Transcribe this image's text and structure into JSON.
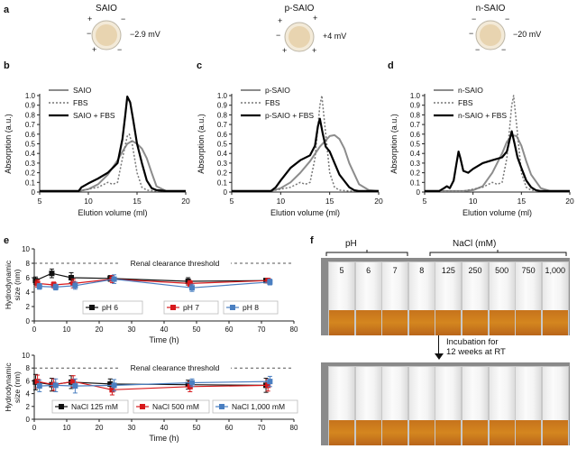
{
  "panels": {
    "a": {
      "label": "a",
      "particles": [
        {
          "name": "SAIO",
          "zeta": "−2.9 mV"
        },
        {
          "name": "p-SAIO",
          "zeta": "+4 mV"
        },
        {
          "name": "n-SAIO",
          "zeta": "−20 mV"
        }
      ]
    },
    "b": {
      "label": "b"
    },
    "c": {
      "label": "c"
    },
    "d": {
      "label": "d"
    },
    "e": {
      "label": "e",
      "threshold_label": "Renal clearance threshold"
    },
    "f": {
      "label": "f",
      "ph_header": "pH",
      "nacl_header": "NaCl (mM)",
      "tubes": [
        "5",
        "6",
        "7",
        "8",
        "125",
        "250",
        "500",
        "750",
        "1,000"
      ],
      "incubation_text": [
        "Incubation for",
        "12 weeks at RT"
      ]
    }
  },
  "chart_data": [
    {
      "id": "b",
      "type": "line",
      "xlabel": "Elution volume (ml)",
      "ylabel": "Absorption (a.u.)",
      "xlim": [
        5,
        20
      ],
      "ylim": [
        0,
        1.0
      ],
      "xticks": [
        "5",
        "10",
        "15",
        "20"
      ],
      "yticks": [
        "0",
        "0.1",
        "0.2",
        "0.3",
        "0.4",
        "0.5",
        "0.6",
        "0.7",
        "0.8",
        "0.9",
        "1.0"
      ],
      "series": [
        {
          "name": "SAIO",
          "style": "gray",
          "x": [
            5,
            9,
            10,
            11,
            12,
            13,
            13.5,
            14,
            14.5,
            15,
            15.5,
            16,
            16.5,
            17,
            18,
            20
          ],
          "y": [
            0.01,
            0.01,
            0.03,
            0.08,
            0.18,
            0.33,
            0.42,
            0.5,
            0.53,
            0.5,
            0.45,
            0.35,
            0.2,
            0.06,
            0.01,
            0.01
          ]
        },
        {
          "name": "FBS",
          "style": "dotted",
          "x": [
            5,
            9,
            10,
            11,
            12,
            12.5,
            13,
            13.5,
            14,
            14.2,
            14.5,
            15,
            15.5,
            16,
            17,
            20
          ],
          "y": [
            0.01,
            0.01,
            0.03,
            0.05,
            0.1,
            0.08,
            0.1,
            0.35,
            0.58,
            0.6,
            0.5,
            0.2,
            0.05,
            0.02,
            0.01,
            0.01
          ]
        },
        {
          "name": "SAIO + FBS",
          "style": "black",
          "x": [
            5,
            9,
            9.3,
            10,
            11,
            12,
            13,
            13.5,
            13.8,
            14,
            14.3,
            14.6,
            15,
            15.5,
            16,
            16.5,
            17,
            18,
            20
          ],
          "y": [
            0.01,
            0.01,
            0.05,
            0.09,
            0.14,
            0.2,
            0.3,
            0.55,
            0.8,
            0.99,
            0.93,
            0.75,
            0.5,
            0.3,
            0.12,
            0.04,
            0.02,
            0.01,
            0.01
          ]
        }
      ]
    },
    {
      "id": "c",
      "type": "line",
      "xlabel": "Elution volume (ml)",
      "ylabel": "Absorption (a.u.)",
      "xlim": [
        5,
        20
      ],
      "ylim": [
        0,
        1.0
      ],
      "xticks": [
        "5",
        "10",
        "15",
        "20"
      ],
      "yticks": [
        "0",
        "0.1",
        "0.2",
        "0.3",
        "0.4",
        "0.5",
        "0.6",
        "0.7",
        "0.8",
        "0.9",
        "1.0"
      ],
      "series": [
        {
          "name": "p-SAIO",
          "style": "gray",
          "x": [
            5,
            9,
            10,
            11,
            12,
            13,
            14,
            15,
            15.5,
            16,
            16.5,
            17,
            18,
            19,
            20
          ],
          "y": [
            0.01,
            0.01,
            0.04,
            0.1,
            0.2,
            0.32,
            0.47,
            0.58,
            0.59,
            0.55,
            0.45,
            0.3,
            0.08,
            0.02,
            0.01
          ]
        },
        {
          "name": "FBS",
          "style": "dotted",
          "x": [
            5,
            9,
            10,
            11,
            12,
            12.5,
            13,
            13.5,
            14,
            14.2,
            14.5,
            15,
            15.5,
            16,
            17,
            20
          ],
          "y": [
            0.01,
            0.01,
            0.03,
            0.05,
            0.1,
            0.08,
            0.1,
            0.35,
            0.9,
            1.0,
            0.7,
            0.2,
            0.05,
            0.02,
            0.01,
            0.01
          ]
        },
        {
          "name": "p-SAIO + FBS",
          "style": "black",
          "x": [
            5,
            9,
            9.5,
            10,
            11,
            12,
            13,
            13.5,
            13.8,
            14,
            14.3,
            14.6,
            15,
            15.5,
            16,
            17,
            17.5,
            18,
            20
          ],
          "y": [
            0.01,
            0.01,
            0.05,
            0.12,
            0.25,
            0.33,
            0.38,
            0.48,
            0.68,
            0.76,
            0.6,
            0.47,
            0.42,
            0.3,
            0.18,
            0.05,
            0.02,
            0.01,
            0.01
          ]
        }
      ]
    },
    {
      "id": "d",
      "type": "line",
      "xlabel": "Elution volume (ml)",
      "ylabel": "Absorption (a.u.)",
      "xlim": [
        5,
        20
      ],
      "ylim": [
        0,
        1.0
      ],
      "xticks": [
        "5",
        "10",
        "15",
        "20"
      ],
      "yticks": [
        "0",
        "0.1",
        "0.2",
        "0.3",
        "0.4",
        "0.5",
        "0.6",
        "0.7",
        "0.8",
        "0.9",
        "1.0"
      ],
      "series": [
        {
          "name": "n-SAIO",
          "style": "gray",
          "x": [
            5,
            9,
            10,
            11,
            12,
            13,
            13.5,
            14,
            14.5,
            15,
            15.5,
            16,
            17,
            18,
            20
          ],
          "y": [
            0.01,
            0.01,
            0.02,
            0.06,
            0.2,
            0.4,
            0.52,
            0.59,
            0.58,
            0.48,
            0.32,
            0.18,
            0.04,
            0.01,
            0.01
          ]
        },
        {
          "name": "FBS",
          "style": "dotted",
          "x": [
            5,
            9,
            10,
            11,
            12,
            12.5,
            13,
            13.5,
            14,
            14.2,
            14.5,
            15,
            15.5,
            16,
            17,
            20
          ],
          "y": [
            0.01,
            0.01,
            0.03,
            0.05,
            0.1,
            0.08,
            0.1,
            0.35,
            0.9,
            1.0,
            0.7,
            0.2,
            0.05,
            0.02,
            0.01,
            0.01
          ]
        },
        {
          "name": "n-SAIO + FBS",
          "style": "black",
          "x": [
            5,
            6.5,
            7,
            7.3,
            7.6,
            8,
            8.3,
            8.5,
            8.7,
            9,
            9.5,
            10,
            11,
            12,
            13,
            13.5,
            13.8,
            14,
            14.3,
            14.6,
            15,
            15.5,
            16,
            16.5,
            17,
            18,
            20
          ],
          "y": [
            0.01,
            0.01,
            0.04,
            0.06,
            0.04,
            0.12,
            0.3,
            0.42,
            0.35,
            0.22,
            0.2,
            0.24,
            0.3,
            0.33,
            0.36,
            0.42,
            0.55,
            0.63,
            0.5,
            0.36,
            0.25,
            0.12,
            0.05,
            0.02,
            0.01,
            0.01,
            0.01
          ]
        }
      ]
    },
    {
      "id": "e1",
      "type": "line",
      "xlabel": "Time (h)",
      "ylabel": "Hydrodynamic size (nm)",
      "xlim": [
        0,
        80
      ],
      "ylim": [
        0,
        10
      ],
      "xticks": [
        "0",
        "10",
        "20",
        "30",
        "40",
        "50",
        "60",
        "70",
        "80"
      ],
      "yticks": [
        "0",
        "2",
        "4",
        "6",
        "8",
        "10"
      ],
      "threshold": 8,
      "series": [
        {
          "name": "pH 6",
          "color": "#111111",
          "x": [
            1,
            6,
            12,
            24,
            48,
            72
          ],
          "y": [
            5.6,
            6.6,
            6.0,
            5.9,
            5.5,
            5.6
          ],
          "err": [
            0.5,
            0.6,
            0.7,
            0.4,
            0.5,
            0.3
          ]
        },
        {
          "name": "pH 7",
          "color": "#d7191c",
          "x": [
            1,
            6,
            12,
            24,
            48,
            72
          ],
          "y": [
            5.2,
            5.0,
            5.2,
            5.8,
            5.2,
            5.6
          ],
          "err": [
            0.5,
            0.4,
            0.6,
            0.5,
            0.4,
            0.3
          ]
        },
        {
          "name": "pH 8",
          "color": "#4a7fc1",
          "x": [
            1,
            6,
            12,
            24,
            48,
            72
          ],
          "y": [
            4.8,
            4.7,
            4.9,
            5.8,
            4.6,
            5.4
          ],
          "err": [
            0.4,
            0.4,
            0.5,
            0.6,
            0.5,
            0.4
          ]
        }
      ]
    },
    {
      "id": "e2",
      "type": "line",
      "xlabel": "Time (h)",
      "ylabel": "Hydrodynamic size (nm)",
      "xlim": [
        0,
        80
      ],
      "ylim": [
        0,
        10
      ],
      "xticks": [
        "0",
        "10",
        "20",
        "30",
        "40",
        "50",
        "60",
        "70",
        "80"
      ],
      "yticks": [
        "0",
        "2",
        "4",
        "6",
        "8",
        "10"
      ],
      "threshold": 8,
      "series": [
        {
          "name": "NaCl 125 mM",
          "color": "#111111",
          "x": [
            1,
            6,
            12,
            24,
            48,
            72
          ],
          "y": [
            5.8,
            5.4,
            5.8,
            5.5,
            5.4,
            5.3
          ],
          "err": [
            1.2,
            1.0,
            1.0,
            0.8,
            0.7,
            1.1
          ]
        },
        {
          "name": "NaCl 500 mM",
          "color": "#d7191c",
          "x": [
            1,
            6,
            12,
            24,
            48,
            72
          ],
          "y": [
            5.9,
            5.4,
            5.9,
            4.6,
            5.1,
            5.3
          ],
          "err": [
            1.0,
            0.9,
            0.9,
            0.8,
            0.8,
            0.9
          ]
        },
        {
          "name": "NaCl 1,000 mM",
          "color": "#4a7fc1",
          "x": [
            1,
            6,
            12,
            24,
            48,
            72
          ],
          "y": [
            5.2,
            5.3,
            5.2,
            5.3,
            5.7,
            5.9
          ],
          "err": [
            0.9,
            1.0,
            1.1,
            0.9,
            0.6,
            0.8
          ]
        }
      ]
    }
  ]
}
